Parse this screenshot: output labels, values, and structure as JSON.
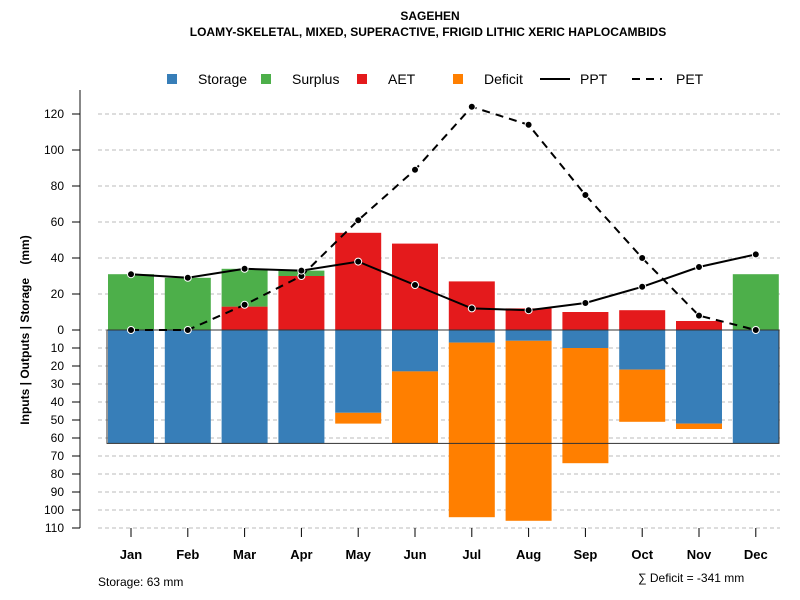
{
  "chart_data": {
    "type": "bar",
    "title": "SAGEHEN",
    "subtitle": "LOAMY-SKELETAL, MIXED, SUPERACTIVE, FRIGID LITHIC XERIC HAPLOCAMBIDS",
    "ylabel": "Inputs | Outputs | Storage    (mm)",
    "upper_ticks": [
      "0",
      "20",
      "40",
      "60",
      "80",
      "100",
      "120"
    ],
    "lower_ticks": [
      "10",
      "20",
      "30",
      "40",
      "50",
      "60",
      "70",
      "80",
      "90",
      "100",
      "110"
    ],
    "ylim_upper": [
      0,
      130
    ],
    "ylim_lower": [
      0,
      110
    ],
    "categories": [
      "Jan",
      "Feb",
      "Mar",
      "Apr",
      "May",
      "Jun",
      "Jul",
      "Aug",
      "Sep",
      "Oct",
      "Nov",
      "Dec"
    ],
    "legend": [
      {
        "label": "Storage",
        "kind": "box",
        "color": "#377eb8"
      },
      {
        "label": "Surplus",
        "kind": "box",
        "color": "#4daf4a"
      },
      {
        "label": "AET",
        "kind": "box",
        "color": "#e41a1c"
      },
      {
        "label": "Deficit",
        "kind": "box",
        "color": "#ff7f00"
      },
      {
        "label": "PPT",
        "kind": "solid",
        "color": "#000000"
      },
      {
        "label": "PET",
        "kind": "dashed",
        "color": "#000000"
      }
    ],
    "series": [
      {
        "name": "AET",
        "values": [
          0,
          0,
          13,
          30,
          54,
          48,
          27,
          12,
          10,
          11,
          5,
          0
        ]
      },
      {
        "name": "Surplus",
        "values": [
          31,
          29,
          21,
          3,
          0,
          0,
          0,
          0,
          0,
          0,
          0,
          31
        ]
      },
      {
        "name": "Storage",
        "values": [
          63,
          63,
          63,
          63,
          46,
          23,
          7,
          6,
          10,
          22,
          52,
          63
        ]
      },
      {
        "name": "Deficit",
        "values": [
          0,
          0,
          0,
          0,
          6,
          40,
          97,
          100,
          64,
          29,
          3,
          0
        ]
      },
      {
        "name": "PPT",
        "values": [
          31,
          29,
          34,
          33,
          38,
          25,
          12,
          11,
          15,
          24,
          35,
          42
        ]
      },
      {
        "name": "PET",
        "values": [
          0,
          0,
          14,
          30,
          61,
          89,
          124,
          114,
          75,
          40,
          8,
          0
        ]
      }
    ],
    "footer_left": "Storage: 63 mm",
    "footer_right": "∑ Deficit = -341 mm",
    "grid": true
  }
}
